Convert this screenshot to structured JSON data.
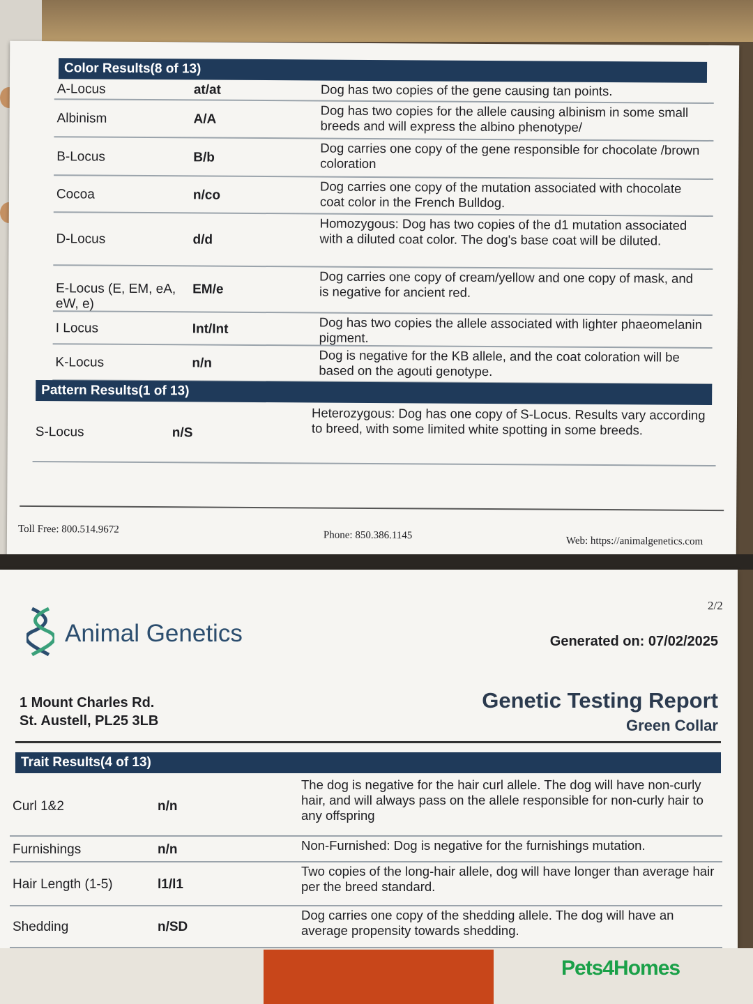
{
  "page1": {
    "color_header": "Color Results(8 of 13)",
    "color_rows": [
      {
        "name": "A-Locus",
        "value": "at/at",
        "desc": "Dog has two copies of the gene causing tan points."
      },
      {
        "name": "Albinism",
        "value": "A/A",
        "desc": "Dog has two copies for the allele causing albinism in some small breeds and will express the albino phenotype/"
      },
      {
        "name": "B-Locus",
        "value": "B/b",
        "desc": "Dog carries one copy of the gene responsible for chocolate /brown coloration"
      },
      {
        "name": "Cocoa",
        "value": "n/co",
        "desc": "Dog carries one copy of the mutation associated with chocolate coat color in the French Bulldog."
      },
      {
        "name": "D-Locus",
        "value": "d/d",
        "desc": "Homozygous: Dog has two copies of the d1 mutation associated with a diluted coat color. The dog's base coat will be diluted."
      },
      {
        "name": "E-Locus (E, EM, eA, eW, e)",
        "value": "EM/e",
        "desc": "Dog carries one copy of cream/yellow and one copy of mask, and is negative for ancient red."
      },
      {
        "name": "I Locus",
        "value": "Int/Int",
        "desc": "Dog has two copies the allele associated with lighter phaeomelanin pigment."
      },
      {
        "name": "K-Locus",
        "value": "n/n",
        "desc": "Dog is negative for the KB allele, and the coat coloration will be based on the agouti genotype."
      }
    ],
    "pattern_header": "Pattern Results(1 of 13)",
    "pattern_rows": [
      {
        "name": "S-Locus",
        "value": "n/S",
        "desc": "Heterozygous: Dog has one copy of S-Locus. Results vary according to breed, with some limited white spotting in some breeds."
      }
    ],
    "footer": {
      "toll_free": "Toll Free: 800.514.9672",
      "phone": "Phone: 850.386.1145",
      "web": "Web: https://animalgenetics.com"
    }
  },
  "page2": {
    "page_number": "2/2",
    "brand": "Animal Genetics",
    "generated": "Generated on: 07/02/2025",
    "address_line1": "1 Mount Charles Rd.",
    "address_line2": "St. Austell, PL25 3LB",
    "report_title": "Genetic Testing Report",
    "dog_name": "Green Collar",
    "trait_header": "Trait Results(4 of 13)",
    "trait_rows": [
      {
        "name": "Curl 1&2",
        "value": "n/n",
        "desc": "The dog is negative for the hair curl allele. The dog will have non-curly hair, and will always pass on the allele responsible for non-curly hair to any offspring"
      },
      {
        "name": "Furnishings",
        "value": "n/n",
        "desc": "Non-Furnished: Dog is negative for the furnishings mutation."
      },
      {
        "name": "Hair Length (1-5)",
        "value": "l1/l1",
        "desc": "Two copies of the long-hair allele, dog will have longer than average hair per the breed standard."
      },
      {
        "name": "Shedding",
        "value": "n/SD",
        "desc": "Dog carries one copy of the shedding allele. The dog will have an average propensity towards shedding."
      }
    ]
  },
  "watermark": "Pets4Homes",
  "colors": {
    "header_bar": "#1f3a5a",
    "watermark": "#1aa048",
    "paper": "#f6f5f2"
  }
}
